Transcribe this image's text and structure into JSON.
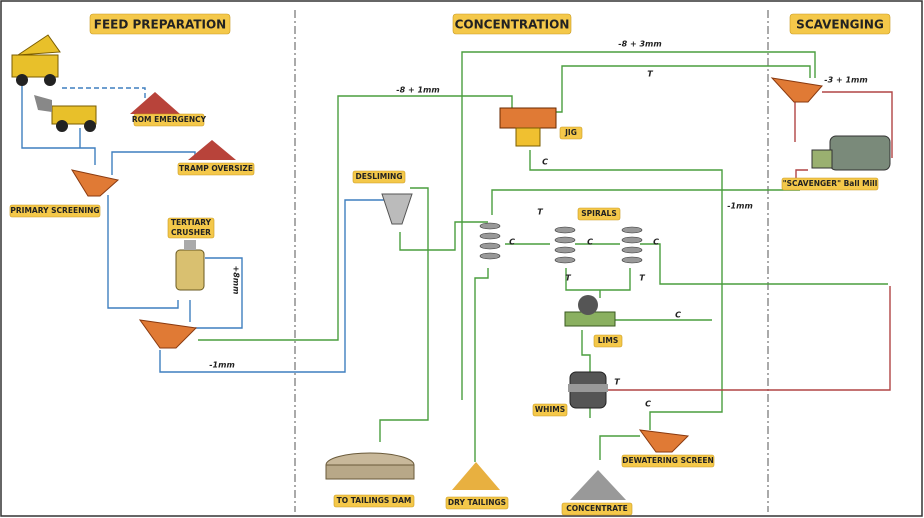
{
  "sections": [
    {
      "title": "FEED PREPARATION"
    },
    {
      "title": "CONCENTRATION"
    },
    {
      "title": "SCAVENGING"
    }
  ],
  "nodes": [
    {
      "label": "ROM EMERGENCY"
    },
    {
      "label": "TRAMP OVERSIZE"
    },
    {
      "label": "PRIMARY SCREENING"
    },
    {
      "label": [
        "TERTIARY",
        "CRUSHER"
      ]
    },
    {
      "label": "DESLIMING"
    },
    {
      "label": "JIG"
    },
    {
      "label": "SPIRALS"
    },
    {
      "label": "LIMS"
    },
    {
      "label": "WHIMS"
    },
    {
      "label": "\"SCAVENGER\" Ball Mill"
    },
    {
      "label": "DEWATERING SCREEN"
    },
    {
      "label": "TO TAILINGS DAM"
    },
    {
      "label": "DRY TAILINGS"
    },
    {
      "label": "CONCENTRATE"
    }
  ],
  "flows": [
    {
      "label": "-8 + 1mm"
    },
    {
      "label": "-8 + 3mm"
    },
    {
      "label": "T"
    },
    {
      "label": "-3 + 1mm"
    },
    {
      "label": "C"
    },
    {
      "label": "T"
    },
    {
      "label": "C"
    },
    {
      "label": "C"
    },
    {
      "label": "C"
    },
    {
      "label": "T"
    },
    {
      "label": "T"
    },
    {
      "label": "C"
    },
    {
      "label": "-1mm"
    },
    {
      "label": "T"
    },
    {
      "label": "C"
    },
    {
      "label": "-1mm"
    },
    {
      "label": "+8mm"
    }
  ]
}
